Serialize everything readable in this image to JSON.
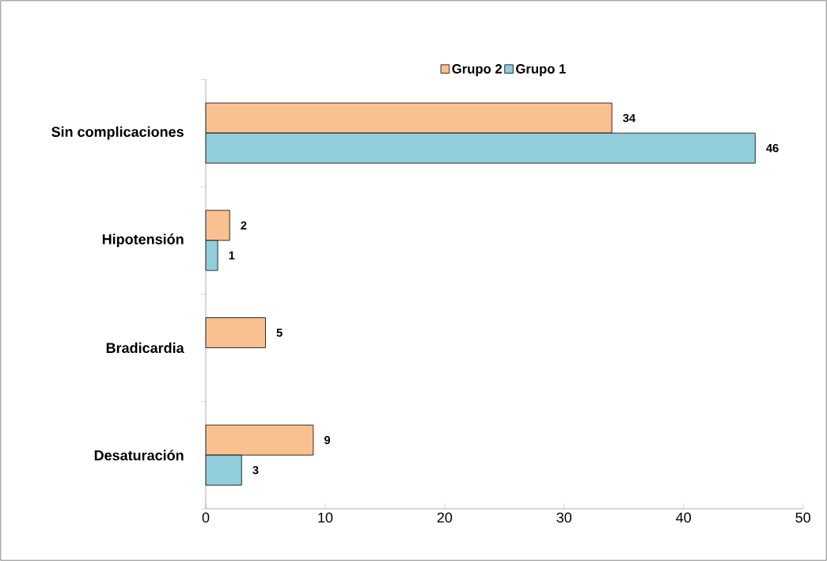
{
  "chart_data": {
    "type": "bar",
    "orientation": "horizontal",
    "categories": [
      "Sin complicaciones",
      "Hipotensión",
      "Bradicardia",
      "Desaturación"
    ],
    "series": [
      {
        "name": "Grupo 2",
        "color": "#f9c090",
        "values": [
          34,
          2,
          5,
          9
        ]
      },
      {
        "name": "Grupo 1",
        "color": "#92cddc",
        "values": [
          46,
          1,
          null,
          3
        ]
      }
    ],
    "xlim": [
      0,
      50
    ],
    "xticks": [
      0,
      10,
      20,
      30,
      40,
      50
    ],
    "data_labels": true,
    "legend": "top"
  }
}
